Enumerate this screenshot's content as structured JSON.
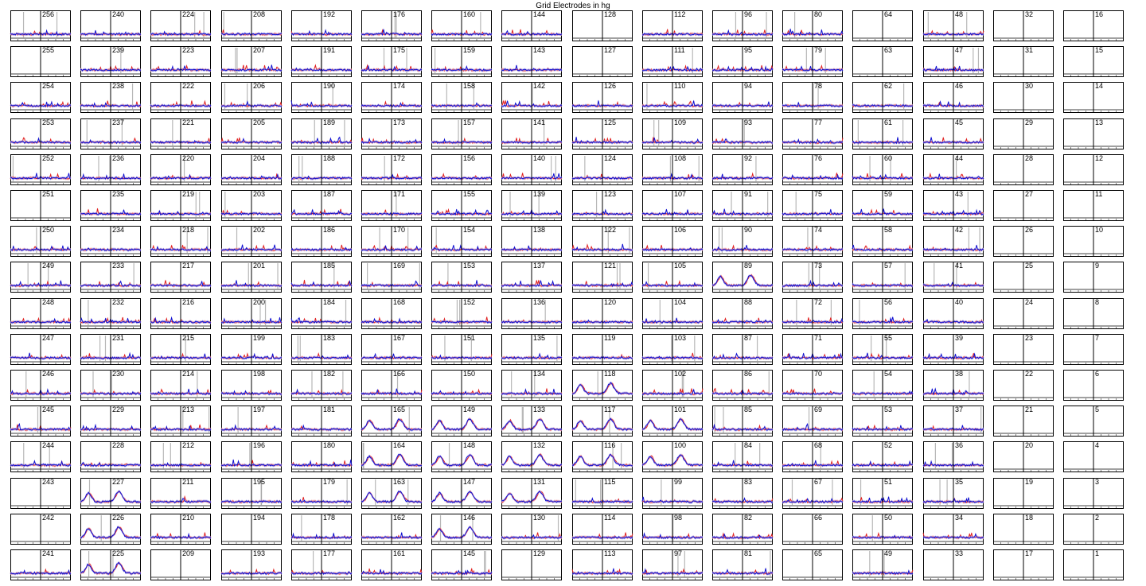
{
  "figure": {
    "title": "Grid Electrodes in hg"
  },
  "chart_data": {
    "type": "line",
    "title": "Grid Electrodes in hg",
    "layout": "16x16 small-multiples grid",
    "rows": 16,
    "cols": 16,
    "panel_labels_rowmajor": [
      "256",
      "240",
      "224",
      "208",
      "192",
      "176",
      "160",
      "144",
      "128",
      "112",
      "96",
      "80",
      "64",
      "48",
      "32",
      "16",
      "255",
      "239",
      "223",
      "207",
      "191",
      "175",
      "159",
      "143",
      "127",
      "111",
      "95",
      "79",
      "63",
      "47",
      "31",
      "15",
      "254",
      "238",
      "222",
      "206",
      "190",
      "174",
      "158",
      "142",
      "126",
      "110",
      "94",
      "78",
      "62",
      "46",
      "30",
      "14",
      "253",
      "237",
      "221",
      "205",
      "189",
      "173",
      "157",
      "141",
      "125",
      "109",
      "93",
      "77",
      "61",
      "45",
      "29",
      "13",
      "252",
      "236",
      "220",
      "204",
      "188",
      "172",
      "156",
      "140",
      "124",
      "108",
      "92",
      "76",
      "60",
      "44",
      "28",
      "12",
      "251",
      "235",
      "219",
      "203",
      "187",
      "171",
      "155",
      "139",
      "123",
      "107",
      "91",
      "75",
      "59",
      "43",
      "27",
      "11",
      "250",
      "234",
      "218",
      "202",
      "186",
      "170",
      "154",
      "138",
      "122",
      "106",
      "90",
      "74",
      "58",
      "42",
      "26",
      "10",
      "249",
      "233",
      "217",
      "201",
      "185",
      "169",
      "153",
      "137",
      "121",
      "105",
      "89",
      "73",
      "57",
      "41",
      "25",
      "9",
      "248",
      "232",
      "216",
      "200",
      "184",
      "168",
      "152",
      "136",
      "120",
      "104",
      "88",
      "72",
      "56",
      "40",
      "24",
      "8",
      "247",
      "231",
      "215",
      "199",
      "183",
      "167",
      "151",
      "135",
      "119",
      "103",
      "87",
      "71",
      "55",
      "39",
      "23",
      "7",
      "246",
      "230",
      "214",
      "198",
      "182",
      "166",
      "150",
      "134",
      "118",
      "102",
      "86",
      "70",
      "54",
      "38",
      "22",
      "6",
      "245",
      "229",
      "213",
      "197",
      "181",
      "165",
      "149",
      "133",
      "117",
      "101",
      "85",
      "69",
      "53",
      "37",
      "21",
      "5",
      "244",
      "228",
      "212",
      "196",
      "180",
      "164",
      "148",
      "132",
      "116",
      "100",
      "84",
      "68",
      "52",
      "36",
      "20",
      "4",
      "243",
      "227",
      "211",
      "195",
      "179",
      "163",
      "147",
      "131",
      "115",
      "99",
      "83",
      "67",
      "51",
      "35",
      "19",
      "3",
      "242",
      "226",
      "210",
      "194",
      "178",
      "162",
      "146",
      "130",
      "114",
      "98",
      "82",
      "66",
      "50",
      "34",
      "18",
      "2",
      "241",
      "225",
      "209",
      "193",
      "177",
      "161",
      "145",
      "129",
      "113",
      "97",
      "81",
      "65",
      "49",
      "33",
      "17",
      "1"
    ],
    "empty_channels": [
      16,
      15,
      14,
      13,
      12,
      11,
      10,
      9,
      8,
      7,
      6,
      5,
      4,
      3,
      2,
      1,
      32,
      31,
      30,
      29,
      28,
      27,
      26,
      25,
      24,
      23,
      22,
      21,
      20,
      19,
      18,
      17,
      128,
      127,
      64,
      63,
      243,
      242,
      251,
      255,
      129,
      66,
      65,
      33,
      194,
      209
    ],
    "x_range": [
      -1,
      1
    ],
    "event_marker_x": 0,
    "y_range": [
      0,
      1
    ],
    "series": [
      {
        "name": "",
        "color": "#e02020"
      },
      {
        "name": "",
        "color": "#1010d0"
      }
    ],
    "highlighted_response_channels": [
      89,
      100,
      101,
      117,
      116,
      118,
      131,
      132,
      133,
      147,
      148,
      149,
      163,
      164,
      165,
      146,
      225,
      226,
      227
    ],
    "gray_artifact_marks": true,
    "grid": false,
    "legend": "none"
  },
  "colors": {
    "series_a": "#e02020",
    "series_b": "#1010d0",
    "band_a": "#f4a0a0",
    "band_b": "#9a9af0",
    "marker": "#9a9a9a",
    "axis": "#000000"
  }
}
